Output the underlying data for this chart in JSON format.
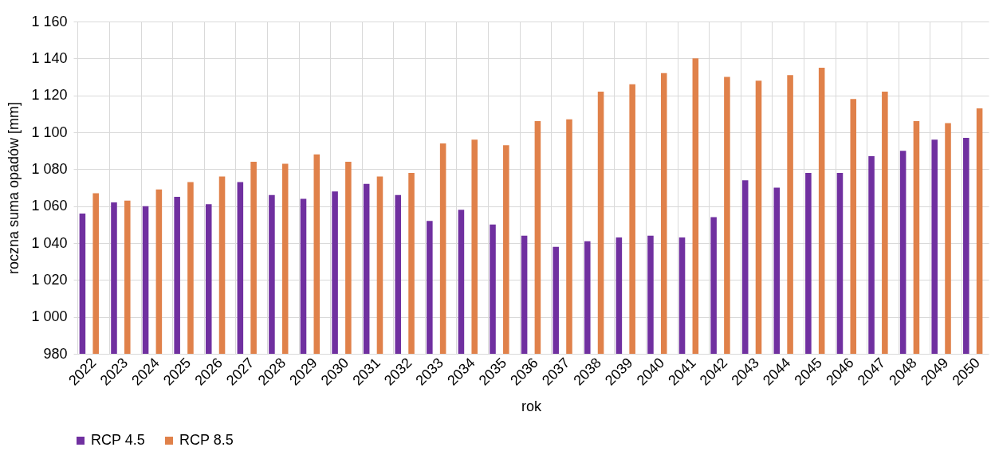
{
  "chart_data": {
    "type": "bar",
    "xlabel": "rok",
    "ylabel": "roczna suma opadów [mm]",
    "categories": [
      "2022",
      "2023",
      "2024",
      "2025",
      "2026",
      "2027",
      "2028",
      "2029",
      "2030",
      "2031",
      "2032",
      "2033",
      "2034",
      "2035",
      "2036",
      "2037",
      "2038",
      "2039",
      "2040",
      "2041",
      "2042",
      "2043",
      "2044",
      "2045",
      "2046",
      "2047",
      "2048",
      "2049",
      "2050"
    ],
    "series": [
      {
        "name": "RCP 4.5",
        "color": "#7030a0",
        "values": [
          1056,
          1062,
          1060,
          1065,
          1061,
          1073,
          1066,
          1064,
          1068,
          1072,
          1066,
          1052,
          1058,
          1050,
          1044,
          1038,
          1041,
          1043,
          1044,
          1043,
          1054,
          1074,
          1070,
          1078,
          1078,
          1087,
          1090,
          1096,
          1097
        ]
      },
      {
        "name": "RCP 8.5",
        "color": "#e0814a",
        "values": [
          1067,
          1063,
          1069,
          1073,
          1076,
          1084,
          1083,
          1088,
          1084,
          1076,
          1078,
          1094,
          1096,
          1093,
          1106,
          1107,
          1122,
          1126,
          1132,
          1140,
          1130,
          1128,
          1131,
          1135,
          1118,
          1122,
          1106,
          1105,
          1113
        ]
      }
    ],
    "ylim": [
      980,
      1160
    ],
    "yticks": [
      {
        "value": 980,
        "label": "980"
      },
      {
        "value": 1000,
        "label": "1 000"
      },
      {
        "value": 1020,
        "label": "1 020"
      },
      {
        "value": 1040,
        "label": "1 040"
      },
      {
        "value": 1060,
        "label": "1 060"
      },
      {
        "value": 1080,
        "label": "1 080"
      },
      {
        "value": 1100,
        "label": "1 100"
      },
      {
        "value": 1120,
        "label": "1 120"
      },
      {
        "value": 1140,
        "label": "1 140"
      },
      {
        "value": 1160,
        "label": "1 160"
      }
    ],
    "grid": true,
    "legend": "bottom"
  }
}
